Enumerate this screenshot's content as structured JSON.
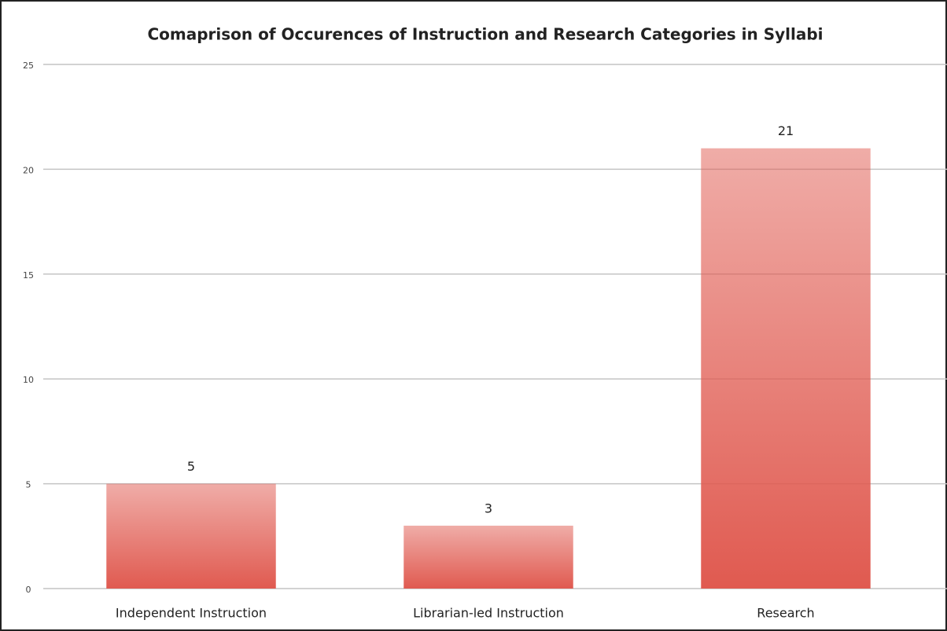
{
  "chart_data": {
    "type": "bar",
    "title": "Comaprison of Occurences of Instruction and Research Categories in Syllabi",
    "categories": [
      "Independent Instruction",
      "Librarian-led Instruction",
      "Research"
    ],
    "values": [
      5,
      3,
      21
    ],
    "color": "#e05a50",
    "ylim": [
      0,
      25
    ],
    "yticks": [
      0,
      5,
      10,
      15,
      20,
      25
    ],
    "grid": true
  }
}
